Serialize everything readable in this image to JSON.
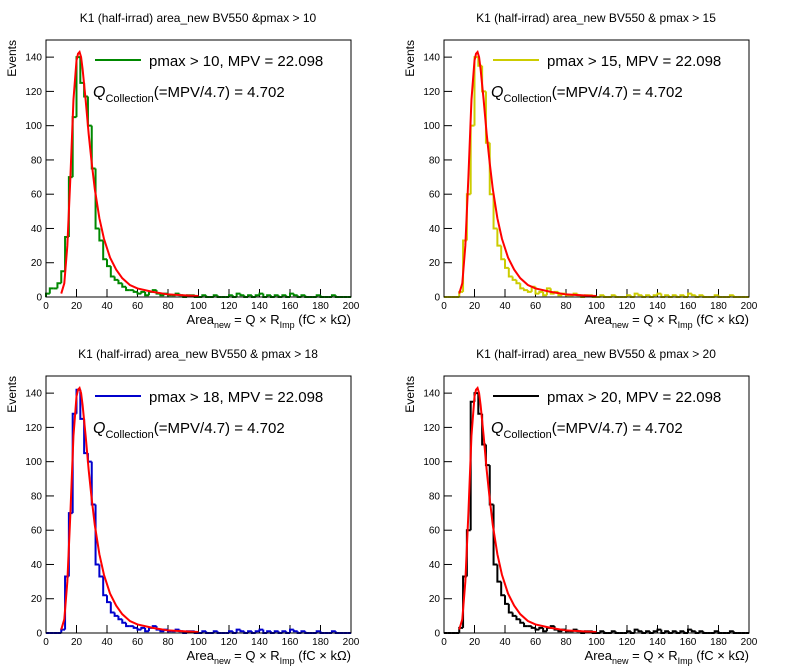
{
  "chart_data": [
    {
      "type": "histogram",
      "title": "K1 (half-irrad) area_new BV550 &pmax > 10",
      "xlabel": {
        "main": "Area",
        "sub": "new",
        "mid": " = Q × R",
        "sub2": "Imp",
        "end": " (fC × kΩ)"
      },
      "ylabel": "Events",
      "annotation": {
        "symbol": "Q",
        "sub": "Collection",
        "text": "(=MPV/4.7) = 4.702"
      },
      "bins": [
        0,
        2.5,
        5,
        7.5,
        10,
        12.5,
        15,
        17.5,
        20,
        22.5,
        25,
        27.5,
        30,
        32.5,
        35,
        37.5,
        40,
        42.5,
        45,
        47.5,
        50,
        52.5,
        55,
        57.5,
        60,
        62.5,
        65,
        67.5,
        70,
        72.5,
        75,
        77.5,
        80,
        82.5,
        85,
        87.5,
        90,
        92.5,
        95,
        97.5,
        100,
        102.5,
        105,
        107.5,
        110,
        112.5,
        115,
        117.5,
        120,
        122.5,
        125,
        127.5,
        130,
        132.5,
        135,
        137.5,
        140,
        142.5,
        145,
        147.5,
        150,
        152.5,
        155,
        157.5,
        160,
        162.5,
        165,
        167.5,
        170,
        172.5,
        175,
        177.5,
        180,
        182.5,
        185,
        187.5,
        190,
        192.5,
        195,
        197.5,
        200
      ],
      "series": [
        {
          "name": "pmax > 10, MPV = 22.098",
          "color": "#008800",
          "values": [
            2,
            5,
            5,
            8,
            15,
            35,
            70,
            105,
            140,
            125,
            117,
            100,
            75,
            40,
            33,
            22,
            18,
            12,
            10,
            8,
            6,
            4,
            4,
            3,
            2,
            3,
            1,
            3,
            4,
            2,
            1,
            2,
            1,
            1,
            2,
            1,
            0,
            1,
            1,
            0,
            0,
            1,
            0,
            0,
            1,
            0,
            0,
            0,
            1,
            0,
            2,
            1,
            0,
            1,
            0,
            1,
            2,
            0,
            1,
            0,
            1,
            0,
            1,
            0,
            2,
            1,
            0,
            1,
            0,
            0,
            0,
            1,
            0,
            0,
            0,
            1,
            0,
            0,
            0,
            0
          ]
        }
      ],
      "fit": {
        "color": "#ff0000",
        "x": [
          10,
          12,
          14,
          16,
          18,
          20,
          21,
          22,
          23,
          24,
          26,
          28,
          30,
          32,
          35,
          38,
          42,
          46,
          50,
          55,
          60,
          70,
          80,
          90,
          100
        ],
        "values": [
          2,
          8,
          30,
          70,
          115,
          138,
          142,
          143,
          140,
          133,
          115,
          95,
          78,
          63,
          46,
          34,
          23,
          16,
          11,
          7,
          5,
          3,
          1.5,
          1,
          0.6
        ]
      },
      "xlim": [
        0,
        200
      ],
      "xticks": [
        0,
        20,
        40,
        60,
        80,
        100,
        120,
        140,
        160,
        180,
        200
      ],
      "ylim": [
        0,
        150
      ],
      "yticks": [
        0,
        20,
        40,
        60,
        80,
        100,
        120,
        140
      ]
    },
    {
      "type": "histogram",
      "title": "K1 (half-irrad) area_new BV550 & pmax > 15",
      "xlabel": {
        "main": "Area",
        "sub": "new",
        "mid": " = Q × R",
        "sub2": "Imp",
        "end": " (fC × kΩ)"
      },
      "ylabel": "Events",
      "annotation": {
        "symbol": "Q",
        "sub": "Collection",
        "text": "(=MPV/4.7) = 4.702"
      },
      "bins": [
        0,
        2.5,
        5,
        7.5,
        10,
        12.5,
        15,
        17.5,
        20,
        22.5,
        25,
        27.5,
        30,
        32.5,
        35,
        37.5,
        40,
        42.5,
        45,
        47.5,
        50,
        52.5,
        55,
        57.5,
        60,
        62.5,
        65,
        67.5,
        70,
        72.5,
        75,
        77.5,
        80,
        82.5,
        85,
        87.5,
        90,
        92.5,
        95,
        97.5,
        100,
        102.5,
        105,
        107.5,
        110,
        112.5,
        115,
        117.5,
        120,
        122.5,
        125,
        127.5,
        130,
        132.5,
        135,
        137.5,
        140,
        142.5,
        145,
        147.5,
        150,
        152.5,
        155,
        157.5,
        160,
        162.5,
        165,
        167.5,
        170,
        172.5,
        175,
        177.5,
        180,
        182.5,
        185,
        187.5,
        190,
        192.5,
        195,
        197.5,
        200
      ],
      "series": [
        {
          "name": "pmax > 15, MPV = 22.098",
          "color": "#cccc00",
          "values": [
            0,
            0,
            0,
            0,
            3,
            33,
            60,
            100,
            140,
            135,
            120,
            90,
            60,
            40,
            30,
            22,
            17,
            12,
            10,
            8,
            5,
            4,
            3,
            6,
            2,
            3,
            1,
            5,
            2,
            3,
            1,
            2,
            1,
            1,
            2,
            1,
            0,
            1,
            1,
            0,
            0,
            1,
            0,
            0,
            1,
            0,
            0,
            0,
            1,
            0,
            2,
            1,
            0,
            1,
            0,
            1,
            2,
            0,
            1,
            0,
            1,
            0,
            1,
            0,
            2,
            1,
            0,
            1,
            0,
            0,
            0,
            1,
            0,
            0,
            0,
            1,
            0,
            0,
            0,
            0
          ]
        }
      ],
      "fit": {
        "color": "#ff0000",
        "x": [
          10,
          12,
          14,
          16,
          18,
          20,
          21,
          22,
          23,
          24,
          26,
          28,
          30,
          32,
          35,
          38,
          42,
          46,
          50,
          55,
          60,
          70,
          80,
          90,
          100
        ],
        "values": [
          2,
          8,
          30,
          70,
          115,
          138,
          142,
          143,
          140,
          133,
          115,
          95,
          78,
          63,
          46,
          34,
          23,
          16,
          11,
          7,
          5,
          3,
          1.5,
          1,
          0.6
        ]
      },
      "xlim": [
        0,
        200
      ],
      "xticks": [
        0,
        20,
        40,
        60,
        80,
        100,
        120,
        140,
        160,
        180,
        200
      ],
      "ylim": [
        0,
        150
      ],
      "yticks": [
        0,
        20,
        40,
        60,
        80,
        100,
        120,
        140
      ]
    },
    {
      "type": "histogram",
      "title": "K1 (half-irrad) area_new BV550 & pmax > 18",
      "xlabel": {
        "main": "Area",
        "sub": "new",
        "mid": " = Q × R",
        "sub2": "Imp",
        "end": " (fC × kΩ)"
      },
      "ylabel": "Events",
      "annotation": {
        "symbol": "Q",
        "sub": "Collection",
        "text": "(=MPV/4.7) = 4.702"
      },
      "bins": [
        0,
        2.5,
        5,
        7.5,
        10,
        12.5,
        15,
        17.5,
        20,
        22.5,
        25,
        27.5,
        30,
        32.5,
        35,
        37.5,
        40,
        42.5,
        45,
        47.5,
        50,
        52.5,
        55,
        57.5,
        60,
        62.5,
        65,
        67.5,
        70,
        72.5,
        75,
        77.5,
        80,
        82.5,
        85,
        87.5,
        90,
        92.5,
        95,
        97.5,
        100,
        102.5,
        105,
        107.5,
        110,
        112.5,
        115,
        117.5,
        120,
        122.5,
        125,
        127.5,
        130,
        132.5,
        135,
        137.5,
        140,
        142.5,
        145,
        147.5,
        150,
        152.5,
        155,
        157.5,
        160,
        162.5,
        165,
        167.5,
        170,
        172.5,
        175,
        177.5,
        180,
        182.5,
        185,
        187.5,
        190,
        192.5,
        195,
        197.5,
        200
      ],
      "series": [
        {
          "name": "pmax > 18, MPV = 22.098",
          "color": "#0000cc",
          "values": [
            0,
            0,
            0,
            0,
            2,
            33,
            70,
            128,
            142,
            125,
            105,
            100,
            75,
            40,
            33,
            22,
            18,
            12,
            10,
            8,
            6,
            4,
            4,
            3,
            2,
            3,
            1,
            3,
            4,
            2,
            1,
            2,
            1,
            1,
            2,
            1,
            0,
            1,
            1,
            0,
            0,
            1,
            0,
            0,
            1,
            0,
            0,
            0,
            1,
            0,
            2,
            1,
            0,
            1,
            0,
            1,
            2,
            0,
            1,
            0,
            1,
            0,
            1,
            0,
            2,
            1,
            0,
            1,
            0,
            0,
            0,
            1,
            0,
            0,
            0,
            1,
            0,
            0,
            0,
            0
          ]
        }
      ],
      "fit": {
        "color": "#ff0000",
        "x": [
          10,
          12,
          14,
          16,
          18,
          20,
          21,
          22,
          23,
          24,
          26,
          28,
          30,
          32,
          35,
          38,
          42,
          46,
          50,
          55,
          60,
          70,
          80,
          90,
          100
        ],
        "values": [
          2,
          8,
          30,
          70,
          115,
          138,
          142,
          143,
          140,
          133,
          115,
          95,
          78,
          63,
          46,
          34,
          23,
          16,
          11,
          7,
          5,
          3,
          1.5,
          1,
          0.6
        ]
      },
      "xlim": [
        0,
        200
      ],
      "xticks": [
        0,
        20,
        40,
        60,
        80,
        100,
        120,
        140,
        160,
        180,
        200
      ],
      "ylim": [
        0,
        150
      ],
      "yticks": [
        0,
        20,
        40,
        60,
        80,
        100,
        120,
        140
      ]
    },
    {
      "type": "histogram",
      "title": "K1 (half-irrad) area_new BV550 & pmax > 20",
      "xlabel": {
        "main": "Area",
        "sub": "new",
        "mid": " = Q × R",
        "sub2": "Imp",
        "end": " (fC × kΩ)"
      },
      "ylabel": "Events",
      "annotation": {
        "symbol": "Q",
        "sub": "Collection",
        "text": "(=MPV/4.7) = 4.702"
      },
      "bins": [
        0,
        2.5,
        5,
        7.5,
        10,
        12.5,
        15,
        17.5,
        20,
        22.5,
        25,
        27.5,
        30,
        32.5,
        35,
        37.5,
        40,
        42.5,
        45,
        47.5,
        50,
        52.5,
        55,
        57.5,
        60,
        62.5,
        65,
        67.5,
        70,
        72.5,
        75,
        77.5,
        80,
        82.5,
        85,
        87.5,
        90,
        92.5,
        95,
        97.5,
        100,
        102.5,
        105,
        107.5,
        110,
        112.5,
        115,
        117.5,
        120,
        122.5,
        125,
        127.5,
        130,
        132.5,
        135,
        137.5,
        140,
        142.5,
        145,
        147.5,
        150,
        152.5,
        155,
        157.5,
        160,
        162.5,
        165,
        167.5,
        170,
        172.5,
        175,
        177.5,
        180,
        182.5,
        185,
        187.5,
        190,
        192.5,
        195,
        197.5,
        200
      ],
      "series": [
        {
          "name": "pmax > 20, MPV = 22.098",
          "color": "#000000",
          "values": [
            0,
            0,
            0,
            0,
            3,
            33,
            60,
            135,
            140,
            128,
            110,
            98,
            75,
            40,
            30,
            22,
            17,
            12,
            10,
            8,
            6,
            4,
            4,
            3,
            2,
            3,
            1,
            3,
            4,
            2,
            1,
            2,
            1,
            1,
            2,
            1,
            0,
            1,
            1,
            0,
            0,
            1,
            0,
            0,
            1,
            0,
            0,
            0,
            1,
            0,
            2,
            1,
            0,
            1,
            0,
            1,
            2,
            0,
            1,
            0,
            1,
            0,
            1,
            0,
            2,
            1,
            0,
            1,
            0,
            0,
            0,
            1,
            0,
            0,
            0,
            1,
            0,
            0,
            0,
            0
          ]
        }
      ],
      "fit": {
        "color": "#ff0000",
        "x": [
          10,
          12,
          14,
          16,
          18,
          20,
          21,
          22,
          23,
          24,
          26,
          28,
          30,
          32,
          35,
          38,
          42,
          46,
          50,
          55,
          60,
          70,
          80,
          90,
          100
        ],
        "values": [
          2,
          8,
          30,
          70,
          115,
          138,
          142,
          143,
          140,
          133,
          115,
          95,
          78,
          63,
          46,
          34,
          23,
          16,
          11,
          7,
          5,
          3,
          1.5,
          1,
          0.6
        ]
      },
      "xlim": [
        0,
        200
      ],
      "xticks": [
        0,
        20,
        40,
        60,
        80,
        100,
        120,
        140,
        160,
        180,
        200
      ],
      "ylim": [
        0,
        150
      ],
      "yticks": [
        0,
        20,
        40,
        60,
        80,
        100,
        120,
        140
      ]
    }
  ]
}
